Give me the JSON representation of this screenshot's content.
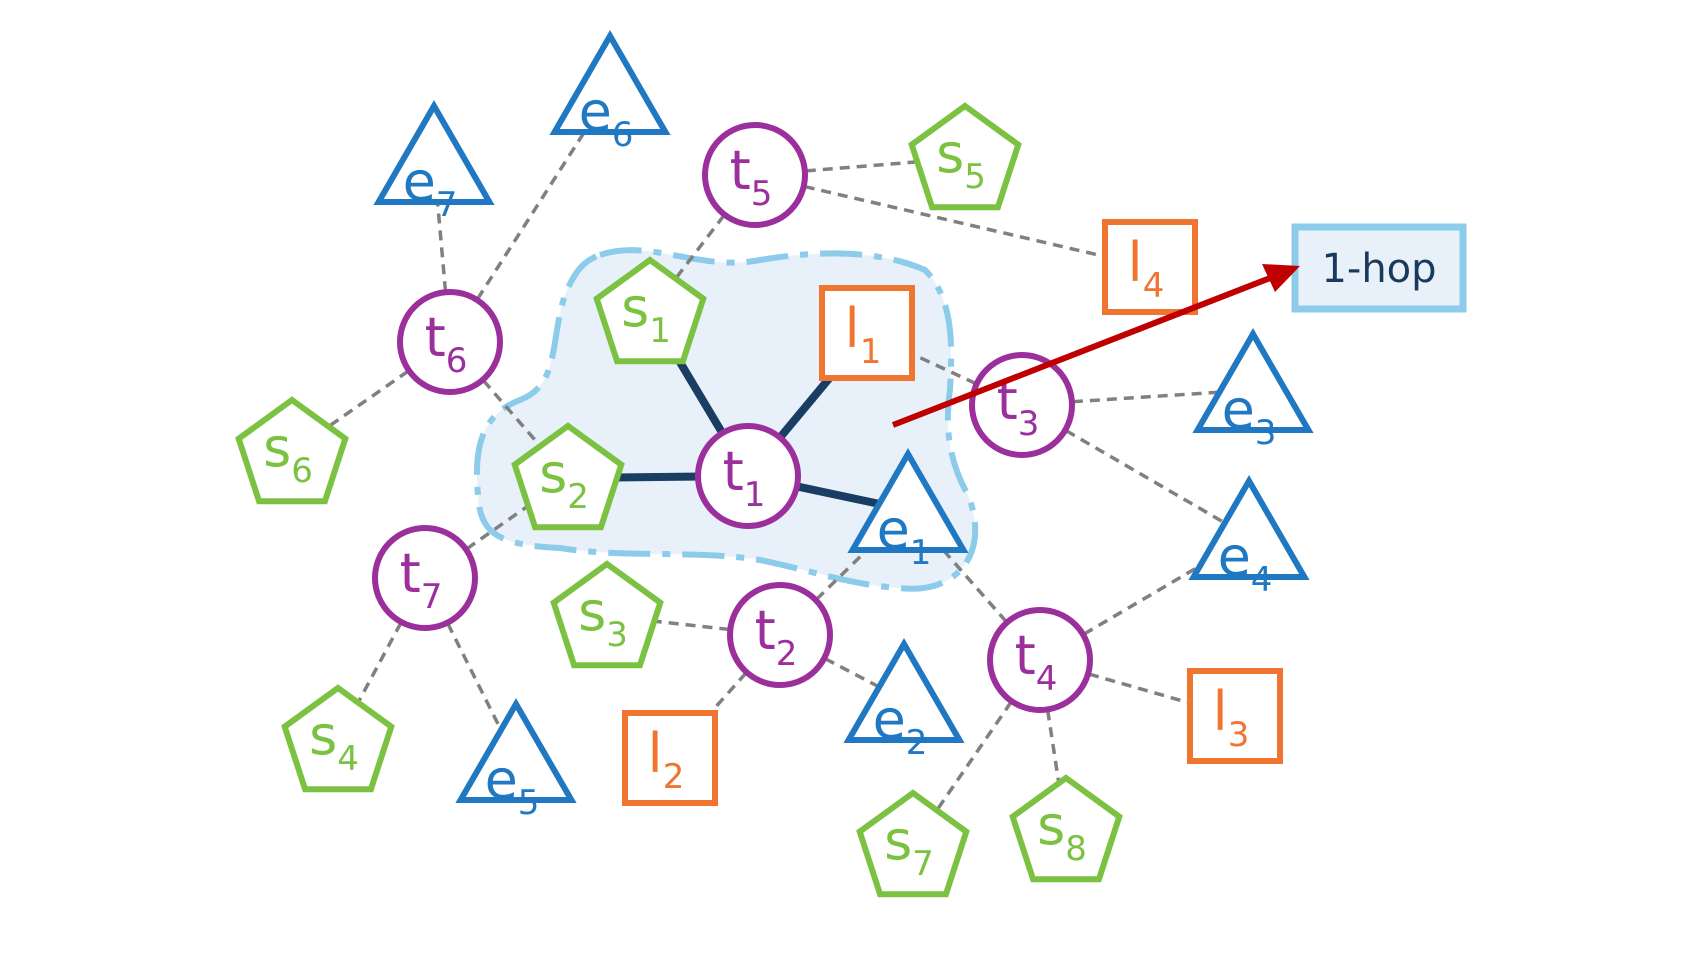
{
  "colors": {
    "t": "#9b2f9b",
    "s": "#7cc242",
    "e": "#1f78c1",
    "l": "#ef7530",
    "core_edge": "#1a3d63",
    "dashed_edge": "#808080",
    "region_fill": "#e8f1fa",
    "region_stroke": "#8ccbea",
    "arrow": "#c00000",
    "hop_text": "#1a3a5c"
  },
  "hop_label": "1-hop",
  "nodes": [
    {
      "id": "t1",
      "type": "t",
      "letter": "t",
      "index": "1"
    },
    {
      "id": "t2",
      "type": "t",
      "letter": "t",
      "index": "2"
    },
    {
      "id": "t3",
      "type": "t",
      "letter": "t",
      "index": "3"
    },
    {
      "id": "t4",
      "type": "t",
      "letter": "t",
      "index": "4"
    },
    {
      "id": "t5",
      "type": "t",
      "letter": "t",
      "index": "5"
    },
    {
      "id": "t6",
      "type": "t",
      "letter": "t",
      "index": "6"
    },
    {
      "id": "t7",
      "type": "t",
      "letter": "t",
      "index": "7"
    },
    {
      "id": "s1",
      "type": "s",
      "letter": "s",
      "index": "1"
    },
    {
      "id": "s2",
      "type": "s",
      "letter": "s",
      "index": "2"
    },
    {
      "id": "s3",
      "type": "s",
      "letter": "s",
      "index": "3"
    },
    {
      "id": "s4",
      "type": "s",
      "letter": "s",
      "index": "4"
    },
    {
      "id": "s5",
      "type": "s",
      "letter": "s",
      "index": "5"
    },
    {
      "id": "s6",
      "type": "s",
      "letter": "s",
      "index": "6"
    },
    {
      "id": "s7",
      "type": "s",
      "letter": "s",
      "index": "7"
    },
    {
      "id": "s8",
      "type": "s",
      "letter": "s",
      "index": "8"
    },
    {
      "id": "e1",
      "type": "e",
      "letter": "e",
      "index": "1"
    },
    {
      "id": "e2",
      "type": "e",
      "letter": "e",
      "index": "2"
    },
    {
      "id": "e3",
      "type": "e",
      "letter": "e",
      "index": "3"
    },
    {
      "id": "e4",
      "type": "e",
      "letter": "e",
      "index": "4"
    },
    {
      "id": "e5",
      "type": "e",
      "letter": "e",
      "index": "5"
    },
    {
      "id": "e6",
      "type": "e",
      "letter": "e",
      "index": "6"
    },
    {
      "id": "e7",
      "type": "e",
      "letter": "e",
      "index": "7"
    },
    {
      "id": "l1",
      "type": "l",
      "letter": "l",
      "index": "1"
    },
    {
      "id": "l2",
      "type": "l",
      "letter": "l",
      "index": "2"
    },
    {
      "id": "l3",
      "type": "l",
      "letter": "l",
      "index": "3"
    },
    {
      "id": "l4",
      "type": "l",
      "letter": "l",
      "index": "4"
    }
  ],
  "core_edges": [
    [
      "t1",
      "s1"
    ],
    [
      "t1",
      "s2"
    ],
    [
      "t1",
      "l1"
    ],
    [
      "t1",
      "e1"
    ]
  ],
  "dashed_edges": [
    [
      "t5",
      "s1"
    ],
    [
      "t5",
      "s5"
    ],
    [
      "t5",
      "l4"
    ],
    [
      "t6",
      "e7"
    ],
    [
      "t6",
      "e6"
    ],
    [
      "t6",
      "s6"
    ],
    [
      "t6",
      "s2"
    ],
    [
      "t3",
      "l1"
    ],
    [
      "t3",
      "e3"
    ],
    [
      "t3",
      "e4"
    ],
    [
      "t7",
      "s2"
    ],
    [
      "t7",
      "s4"
    ],
    [
      "t7",
      "e5"
    ],
    [
      "t2",
      "s3"
    ],
    [
      "t2",
      "l2"
    ],
    [
      "t2",
      "e2"
    ],
    [
      "t2",
      "e1"
    ],
    [
      "t4",
      "e1"
    ],
    [
      "t4",
      "e4"
    ],
    [
      "t4",
      "l3"
    ],
    [
      "t4",
      "s7"
    ],
    [
      "t4",
      "s8"
    ]
  ]
}
